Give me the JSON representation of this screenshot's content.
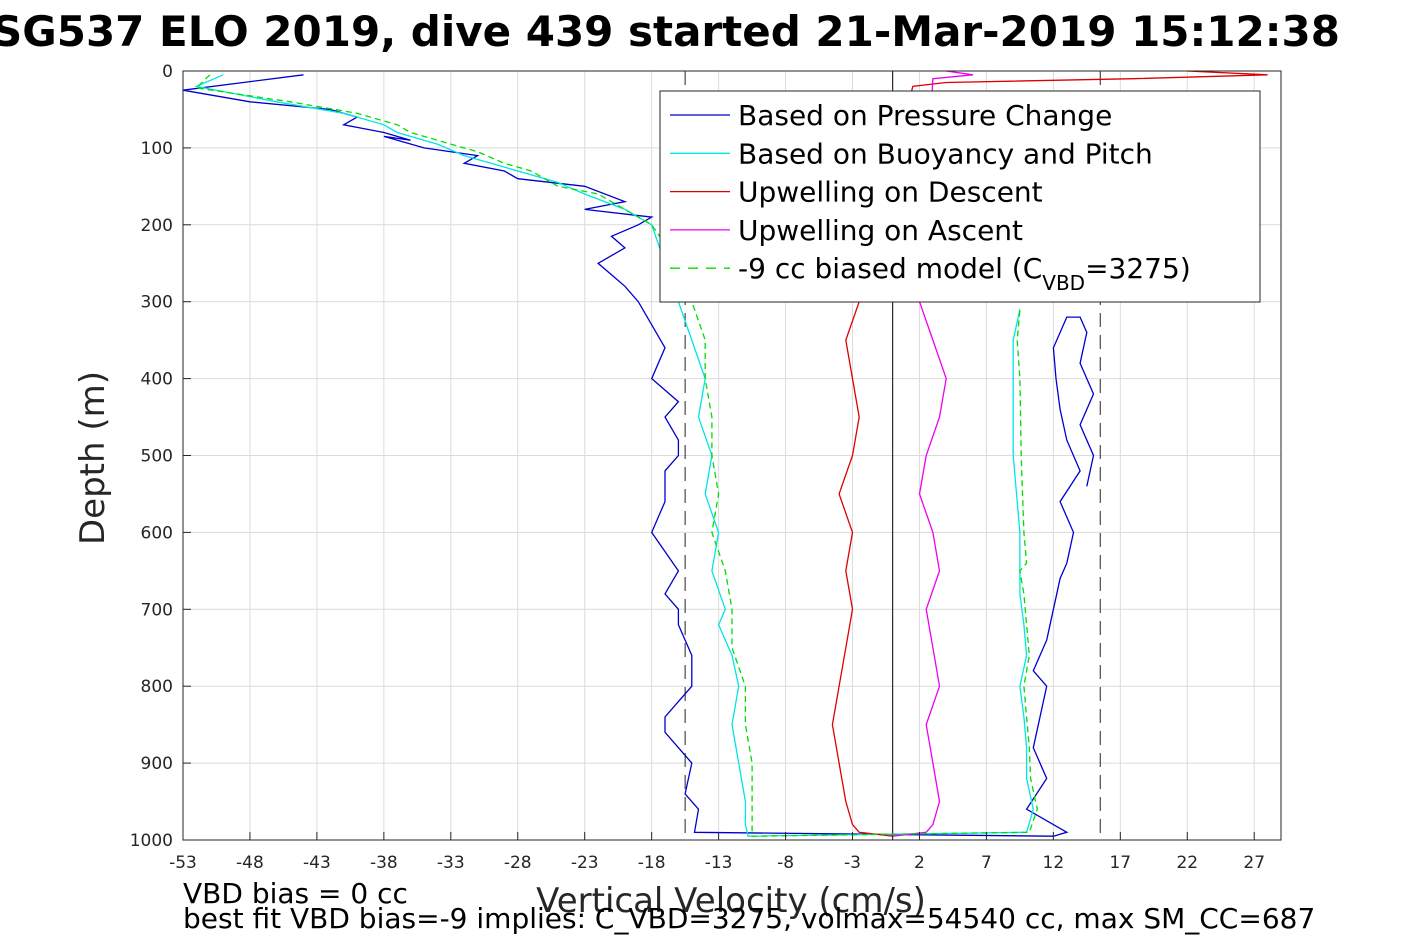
{
  "chart_data": {
    "type": "line",
    "title": "SG537 ELO 2019, dive 439 started 21-Mar-2019 15:12:38",
    "xlabel": "Vertical Velocity (cm/s)",
    "ylabel": "Depth (m)",
    "xlim": [
      -53,
      29
    ],
    "ylim": [
      0,
      1000
    ],
    "y_reversed": true,
    "grid": true,
    "xticks": [
      -53,
      -48,
      -43,
      -38,
      -33,
      -28,
      -23,
      -18,
      -13,
      -8,
      -3,
      2,
      7,
      12,
      17,
      22,
      27
    ],
    "yticks": [
      0,
      100,
      200,
      300,
      400,
      500,
      600,
      700,
      800,
      900,
      1000
    ],
    "legend_position": "top-right",
    "colors": {
      "pressure": "#0000cc",
      "buoyancy": "#00e5e5",
      "upwell_descent": "#dd0000",
      "upwell_ascent": "#ee00ee",
      "model": "#00dd00",
      "reference": "#000000"
    },
    "legend": [
      {
        "label": "Based on Pressure Change",
        "key": "pressure",
        "dashed": false
      },
      {
        "label": "Based on Buoyancy and Pitch",
        "key": "buoyancy",
        "dashed": false
      },
      {
        "label": "Upwelling on Descent",
        "key": "upwell_descent",
        "dashed": false
      },
      {
        "label": "Upwelling on Ascent",
        "key": "upwell_ascent",
        "dashed": false
      },
      {
        "label_main": "-9 cc biased model (C",
        "label_sub": "VBD",
        "label_end": "=3275)",
        "key": "model",
        "dashed": true
      }
    ],
    "reference_lines": {
      "zero": 0,
      "dashed": [
        -15.5,
        15.5
      ]
    },
    "series": [
      {
        "name": "Based on Pressure Change",
        "key": "pressure",
        "x": [
          -44,
          -53,
          -48,
          -42,
          -40,
          -41,
          -38,
          -36,
          -38,
          -35,
          -31,
          -32,
          -29,
          -28,
          -23,
          -20,
          -23,
          -18,
          -19,
          -21,
          -20,
          -22,
          -21,
          -20,
          -19,
          -18,
          -17,
          -18,
          -16,
          -17,
          -16,
          -16,
          -17,
          -17,
          -18,
          -16,
          -17,
          -16,
          -16,
          -15,
          -15,
          -16,
          -17,
          -17,
          -16,
          -15,
          -15.5,
          -14.5,
          -14.8,
          12,
          13,
          10,
          11.5,
          10.5,
          11,
          11.5,
          10.5,
          11.5,
          12,
          12.5,
          13,
          13.5,
          12.5,
          14,
          13,
          12.5,
          12.2,
          12,
          13,
          14,
          14.5,
          14,
          15,
          14,
          15,
          14.5
        ],
        "y": [
          5,
          25,
          40,
          50,
          60,
          70,
          80,
          90,
          85,
          100,
          110,
          120,
          130,
          140,
          150,
          170,
          180,
          190,
          200,
          215,
          230,
          250,
          265,
          280,
          300,
          330,
          360,
          400,
          430,
          450,
          480,
          500,
          520,
          560,
          600,
          650,
          680,
          700,
          720,
          760,
          800,
          820,
          840,
          860,
          880,
          900,
          940,
          960,
          990,
          995,
          990,
          960,
          920,
          880,
          840,
          800,
          780,
          740,
          700,
          660,
          640,
          600,
          560,
          520,
          480,
          440,
          400,
          360,
          320,
          320,
          340,
          380,
          420,
          460,
          500,
          540
        ]
      },
      {
        "name": "Based on Buoyancy and Pitch",
        "key": "buoyancy",
        "x": [
          -50,
          -52,
          -46,
          -41,
          -38,
          -37,
          -34,
          -32,
          -30,
          -28,
          -25,
          -23,
          -20,
          -18,
          -17,
          -16,
          -15,
          -14,
          -14.5,
          -13.5,
          -14,
          -13,
          -13.5,
          -12.5,
          -13,
          -12,
          -11.5,
          -12,
          -11.5,
          -11,
          -11,
          -10.8,
          -10.8,
          10,
          10.5,
          10,
          10,
          9.8,
          9.5,
          10,
          9.8,
          9.5,
          9.5,
          9.5,
          9,
          9,
          9,
          9.5
        ],
        "y": [
          5,
          20,
          40,
          55,
          70,
          80,
          95,
          110,
          120,
          130,
          145,
          160,
          180,
          200,
          250,
          300,
          350,
          400,
          450,
          500,
          550,
          600,
          650,
          700,
          720,
          760,
          800,
          850,
          900,
          950,
          980,
          995,
          995,
          990,
          960,
          920,
          880,
          840,
          800,
          760,
          720,
          680,
          640,
          600,
          500,
          400,
          350,
          310
        ]
      },
      {
        "name": "Upwelling on Descent",
        "key": "upwell_descent",
        "x": [
          22,
          28,
          18,
          4,
          1.5,
          -2.5,
          -3.5,
          -3,
          -2.5,
          -3,
          -4,
          -3,
          -3.5,
          -3,
          -3.5,
          -4,
          -4.5,
          -4,
          -3.5,
          -3,
          -2.5,
          0
        ],
        "y": [
          0,
          5,
          10,
          15,
          20,
          300,
          350,
          400,
          450,
          500,
          550,
          600,
          650,
          700,
          750,
          800,
          850,
          900,
          950,
          980,
          990,
          995
        ]
      },
      {
        "name": "Upwelling on Ascent",
        "key": "upwell_ascent",
        "x": [
          4,
          6,
          3,
          2,
          3,
          4,
          3.5,
          2.5,
          2,
          3,
          3.5,
          2.5,
          3,
          3.5,
          2.5,
          3,
          3.5,
          3,
          2.5,
          0
        ],
        "y": [
          0,
          5,
          10,
          300,
          350,
          400,
          450,
          500,
          550,
          600,
          650,
          700,
          750,
          800,
          850,
          900,
          950,
          980,
          990,
          995
        ]
      },
      {
        "name": "-9 cc biased model (C_VBD=3275)",
        "key": "model",
        "dashed": true,
        "x": [
          -51,
          -52,
          -45,
          -40,
          -37,
          -36,
          -33,
          -31,
          -29,
          -27,
          -25,
          -22,
          -20,
          -18,
          -16,
          -15,
          -14,
          -14,
          -13.5,
          -13.5,
          -13,
          -13.5,
          -12.5,
          -12,
          -12,
          -11,
          -11,
          -10.5,
          -10.5,
          10.2,
          10.8,
          10.3,
          10.2,
          10,
          9.8,
          10.2,
          10,
          9.8,
          9.5,
          10,
          9.8,
          9.6,
          9.5,
          9.3,
          9.5
        ],
        "y": [
          5,
          22,
          40,
          55,
          70,
          80,
          95,
          105,
          120,
          130,
          150,
          160,
          180,
          200,
          250,
          300,
          350,
          400,
          450,
          500,
          550,
          600,
          650,
          700,
          750,
          800,
          850,
          900,
          995,
          990,
          960,
          920,
          880,
          840,
          800,
          760,
          720,
          680,
          650,
          640,
          600,
          500,
          400,
          350,
          310
        ]
      }
    ]
  },
  "notes": {
    "bias": "VBD bias = 0 cc",
    "best_fit": "best fit VBD bias=-9 implies: C_VBD=3275, volmax=54540 cc, max SM_CC=687"
  }
}
